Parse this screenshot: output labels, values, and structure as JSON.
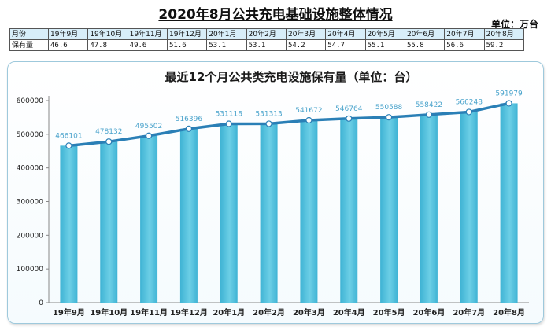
{
  "page": {
    "title": "2020年8月公共充电基础设施整体情况",
    "unit": "单位：万台"
  },
  "table": {
    "row1_label": "月份",
    "row2_label": "保有量",
    "months": [
      "19年9月",
      "19年10月",
      "19年11月",
      "19年12月",
      "20年1月",
      "20年2月",
      "20年3月",
      "20年4月",
      "20年5月",
      "20年6月",
      "20年7月",
      "20年8月"
    ],
    "values": [
      "46.6",
      "47.8",
      "49.6",
      "51.6",
      "53.1",
      "53.1",
      "54.2",
      "54.7",
      "55.1",
      "55.8",
      "56.6",
      "59.2"
    ]
  },
  "colors": {
    "bar": "#6ccfe6",
    "bar_dark": "#3fb3d4",
    "line": "#2a7fb6",
    "marker": "#ffffff",
    "label": "#4aa3cc"
  },
  "chart_data": {
    "type": "bar",
    "title": "最近12个月公共类充电设施保有量（单位：台）",
    "categories": [
      "19年9月",
      "19年10月",
      "19年11月",
      "19年12月",
      "20年1月",
      "20年2月",
      "20年3月",
      "20年4月",
      "20年5月",
      "20年6月",
      "20年7月",
      "20年8月"
    ],
    "values": [
      466101,
      478132,
      495502,
      516396,
      531118,
      531313,
      541672,
      546764,
      550588,
      558422,
      566248,
      591979
    ],
    "overlay": "line",
    "ylim": [
      0,
      600000
    ],
    "yticks": [
      0,
      100000,
      200000,
      300000,
      400000,
      500000,
      600000
    ],
    "ytick_labels": [
      "0",
      "100000",
      "200000",
      "300000",
      "400000",
      "500000",
      "600000"
    ],
    "grid": false,
    "data_labels": true
  }
}
